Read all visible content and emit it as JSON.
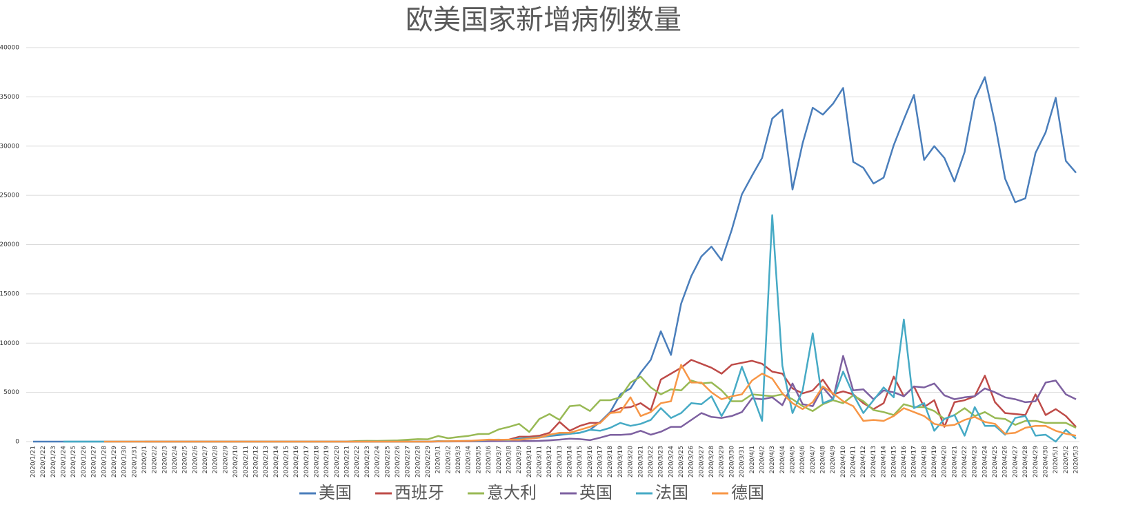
{
  "chart_data": {
    "type": "line",
    "title": "欧美国家新增病例数量",
    "categories": [
      "2020/1/21",
      "2020/1/22",
      "2020/1/23",
      "2020/1/24",
      "2020/1/25",
      "2020/1/26",
      "2020/1/27",
      "2020/1/28",
      "2020/1/29",
      "2020/1/30",
      "2020/1/31",
      "2020/2/1",
      "2020/2/2",
      "2020/2/3",
      "2020/2/4",
      "2020/2/5",
      "2020/2/6",
      "2020/2/7",
      "2020/2/8",
      "2020/2/9",
      "2020/2/10",
      "2020/2/11",
      "2020/2/12",
      "2020/2/13",
      "2020/2/14",
      "2020/2/15",
      "2020/2/16",
      "2020/2/17",
      "2020/2/18",
      "2020/2/19",
      "2020/2/20",
      "2020/2/21",
      "2020/2/22",
      "2020/2/23",
      "2020/2/24",
      "2020/2/25",
      "2020/2/26",
      "2020/2/27",
      "2020/2/28",
      "2020/2/29",
      "2020/3/1",
      "2020/3/2",
      "2020/3/3",
      "2020/3/4",
      "2020/3/5",
      "2020/3/6",
      "2020/3/7",
      "2020/3/8",
      "2020/3/9",
      "2020/3/10",
      "2020/3/11",
      "2020/3/12",
      "2020/3/13",
      "2020/3/14",
      "2020/3/15",
      "2020/3/16",
      "2020/3/17",
      "2020/3/18",
      "2020/3/19",
      "2020/3/20",
      "2020/3/21",
      "2020/3/22",
      "2020/3/23",
      "2020/3/24",
      "2020/3/25",
      "2020/3/26",
      "2020/3/27",
      "2020/3/28",
      "2020/3/29",
      "2020/3/30",
      "2020/3/31",
      "2020/4/1",
      "2020/4/2",
      "2020/4/3",
      "2020/4/4",
      "2020/4/5",
      "2020/4/6",
      "2020/4/7",
      "2020/4/8",
      "2020/4/9",
      "2020/4/10",
      "2020/4/11",
      "2020/4/12",
      "2020/4/13",
      "2020/4/14",
      "2020/4/15",
      "2020/4/16",
      "2020/4/17",
      "2020/4/18",
      "2020/4/19",
      "2020/4/20",
      "2020/4/21",
      "2020/4/22",
      "2020/4/23",
      "2020/4/24",
      "2020/4/25",
      "2020/4/26",
      "2020/4/27",
      "2020/4/28",
      "2020/4/29",
      "2020/4/30",
      "2020/5/1",
      "2020/5/2",
      "2020/5/3"
    ],
    "series": [
      {
        "name": "美国",
        "color": "#4a7ebb",
        "values": [
          0,
          0,
          0,
          0,
          0,
          0,
          0,
          0,
          0,
          0,
          0,
          0,
          0,
          0,
          0,
          0,
          0,
          0,
          0,
          0,
          0,
          0,
          0,
          0,
          0,
          0,
          0,
          0,
          0,
          0,
          0,
          0,
          0,
          0,
          0,
          0,
          0,
          0,
          0,
          0,
          20,
          20,
          25,
          30,
          70,
          70,
          120,
          120,
          180,
          290,
          420,
          570,
          670,
          800,
          900,
          1200,
          2000,
          3000,
          4800,
          5400,
          7000,
          8300,
          11200,
          8800,
          14000,
          16800,
          18800,
          19800,
          18400,
          21500,
          25100,
          27000,
          28800,
          32800,
          33700,
          25600,
          30300,
          33900,
          33200,
          34300,
          35900,
          28400,
          27800,
          26200,
          26800,
          30100,
          32700,
          35200,
          28600,
          30000,
          28800,
          26400,
          29400,
          34800,
          37000,
          32300,
          26700,
          24300,
          24700,
          29300,
          31400,
          34900,
          28500,
          27300
        ]
      },
      {
        "name": "西班牙",
        "color": "#be4b48",
        "values": [
          null,
          null,
          null,
          null,
          null,
          null,
          null,
          null,
          null,
          null,
          null,
          0,
          0,
          0,
          0,
          0,
          0,
          0,
          0,
          0,
          0,
          0,
          0,
          0,
          0,
          0,
          0,
          0,
          0,
          0,
          0,
          0,
          0,
          0,
          0,
          0,
          0,
          0,
          0,
          0,
          20,
          30,
          40,
          60,
          50,
          100,
          100,
          200,
          500,
          500,
          600,
          900,
          2000,
          1100,
          1600,
          1900,
          1900,
          2900,
          3400,
          3500,
          3900,
          3200,
          6300,
          6900,
          7500,
          8300,
          7900,
          7500,
          6900,
          7800,
          8000,
          8200,
          7900,
          7100,
          6900,
          5400,
          4900,
          5200,
          6300,
          4800,
          5100,
          4800,
          3900,
          3300,
          3900,
          6600,
          4600,
          5600,
          3500,
          4200,
          1500,
          4000,
          4200,
          4600,
          6700,
          4000,
          2900,
          2800,
          2700,
          4800,
          2700,
          3300,
          2600,
          1500
        ]
      },
      {
        "name": "意大利",
        "color": "#98b954",
        "values": [
          null,
          null,
          null,
          null,
          null,
          null,
          null,
          null,
          null,
          null,
          null,
          0,
          0,
          0,
          0,
          0,
          0,
          0,
          0,
          0,
          0,
          0,
          0,
          0,
          0,
          0,
          0,
          0,
          0,
          0,
          0,
          15,
          60,
          80,
          70,
          100,
          120,
          190,
          250,
          240,
          570,
          340,
          470,
          580,
          770,
          780,
          1250,
          1490,
          1800,
          980,
          2300,
          2800,
          2200,
          3600,
          3700,
          3100,
          4200,
          4200,
          4500,
          6000,
          6600,
          5500,
          4800,
          5300,
          5200,
          6200,
          5900,
          6000,
          5200,
          4100,
          4100,
          4800,
          4700,
          4600,
          4800,
          4300,
          3600,
          3100,
          3800,
          4200,
          3900,
          4700,
          4100,
          3200,
          3000,
          2700,
          3800,
          3500,
          3500,
          3100,
          2300,
          2700,
          3400,
          2600,
          3000,
          2400,
          2300,
          1700,
          2100,
          2100,
          1900,
          1900,
          1900,
          1400
        ]
      },
      {
        "name": "英国",
        "color": "#7d60a0",
        "values": [
          null,
          null,
          null,
          null,
          null,
          null,
          null,
          null,
          null,
          null,
          null,
          0,
          0,
          0,
          0,
          0,
          0,
          0,
          0,
          0,
          0,
          0,
          0,
          0,
          0,
          0,
          0,
          0,
          0,
          0,
          0,
          0,
          0,
          0,
          0,
          0,
          0,
          0,
          0,
          0,
          10,
          10,
          20,
          20,
          30,
          40,
          50,
          60,
          60,
          50,
          80,
          130,
          200,
          300,
          250,
          150,
          400,
          680,
          680,
          750,
          1100,
          700,
          1000,
          1500,
          1500,
          2200,
          2900,
          2500,
          2400,
          2600,
          3000,
          4400,
          4300,
          4500,
          3700,
          5900,
          3800,
          3600,
          5500,
          4300,
          8700,
          5200,
          5300,
          4300,
          5200,
          5000,
          4600,
          5600,
          5500,
          5900,
          4700,
          4300,
          4500,
          4600,
          5400,
          5000,
          4500,
          4300,
          4000,
          4100,
          6000,
          6200,
          4800,
          4300
        ]
      },
      {
        "name": "法国",
        "color": "#46aac5",
        "values": [
          null,
          null,
          null,
          0,
          0,
          0,
          0,
          0,
          0,
          0,
          0,
          0,
          0,
          0,
          0,
          0,
          0,
          0,
          0,
          0,
          0,
          0,
          0,
          0,
          0,
          0,
          0,
          0,
          0,
          0,
          0,
          0,
          0,
          0,
          0,
          0,
          0,
          0,
          0,
          0,
          50,
          30,
          60,
          80,
          100,
          180,
          200,
          150,
          300,
          370,
          450,
          600,
          800,
          800,
          900,
          1200,
          1100,
          1400,
          1900,
          1600,
          1800,
          2200,
          3400,
          2400,
          2900,
          3900,
          3800,
          4600,
          2600,
          4400,
          7600,
          4900,
          2100,
          23000,
          7700,
          2900,
          5200,
          11000,
          3900,
          4300,
          7100,
          4800,
          2900,
          4200,
          5500,
          4500,
          12400,
          3400,
          3900,
          1100,
          2300,
          2700,
          600,
          3500,
          1600,
          1600,
          700,
          2400,
          2600,
          600,
          700,
          0,
          1200,
          300
        ]
      },
      {
        "name": "德国",
        "color": "#f79646",
        "values": [
          null,
          null,
          null,
          null,
          null,
          null,
          null,
          0,
          0,
          0,
          0,
          0,
          0,
          0,
          0,
          0,
          0,
          0,
          0,
          0,
          0,
          0,
          0,
          0,
          0,
          0,
          0,
          0,
          0,
          0,
          0,
          0,
          0,
          0,
          0,
          0,
          0,
          0,
          0,
          0,
          30,
          40,
          50,
          70,
          130,
          200,
          180,
          200,
          180,
          300,
          400,
          700,
          900,
          900,
          1200,
          1500,
          1900,
          2900,
          3000,
          4500,
          2600,
          3000,
          3900,
          4100,
          7800,
          6000,
          6000,
          5000,
          4300,
          4600,
          4800,
          6200,
          6900,
          6400,
          4900,
          3900,
          3300,
          4000,
          5600,
          4900,
          4100,
          3600,
          2100,
          2200,
          2100,
          2600,
          3400,
          3000,
          2600,
          1800,
          1600,
          1700,
          2200,
          2500,
          2000,
          1800,
          800,
          900,
          1400,
          1600,
          1600,
          1100,
          800,
          600
        ]
      }
    ],
    "ylim": [
      0,
      40000
    ],
    "yticks": [
      0,
      5000,
      10000,
      15000,
      20000,
      25000,
      30000,
      35000,
      40000
    ],
    "grid": true,
    "legend": "bottom"
  }
}
